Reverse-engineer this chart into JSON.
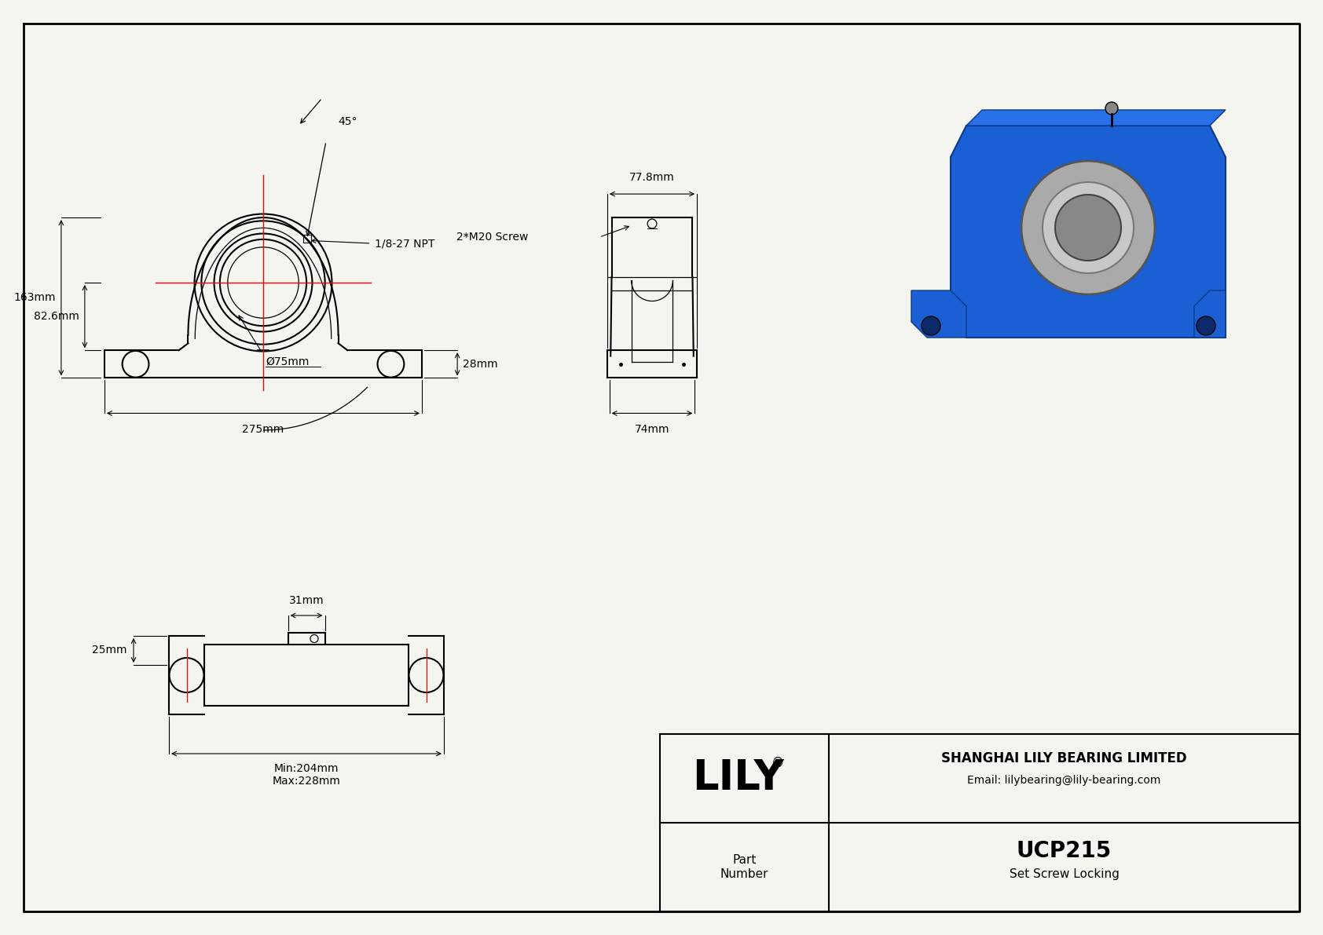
{
  "bg_color": "#f5f5f0",
  "line_color": "#000000",
  "red_line_color": "#ff0000",
  "title_block": {
    "company": "SHANGHAI LILY BEARING LIMITED",
    "email": "Email: lilybearing@lily-bearing.com",
    "part_number": "UCP215",
    "description": "Set Screw Locking",
    "brand": "LILY",
    "registered": "®"
  },
  "front_view": {
    "dim_275": "275mm",
    "dim_163": "163mm",
    "dim_82_6": "82.6mm",
    "dim_75": "Ø75mm",
    "dim_45": "45°",
    "dim_npt": "1/8-27 NPT",
    "dim_28": "28mm"
  },
  "side_view": {
    "dim_77_8": "77.8mm",
    "dim_74": "74mm",
    "dim_m20": "2*M20 Screw"
  },
  "bottom_view": {
    "dim_31": "31mm",
    "dim_25": "25mm",
    "dim_min": "Min:204mm",
    "dim_max": "Max:228mm"
  }
}
